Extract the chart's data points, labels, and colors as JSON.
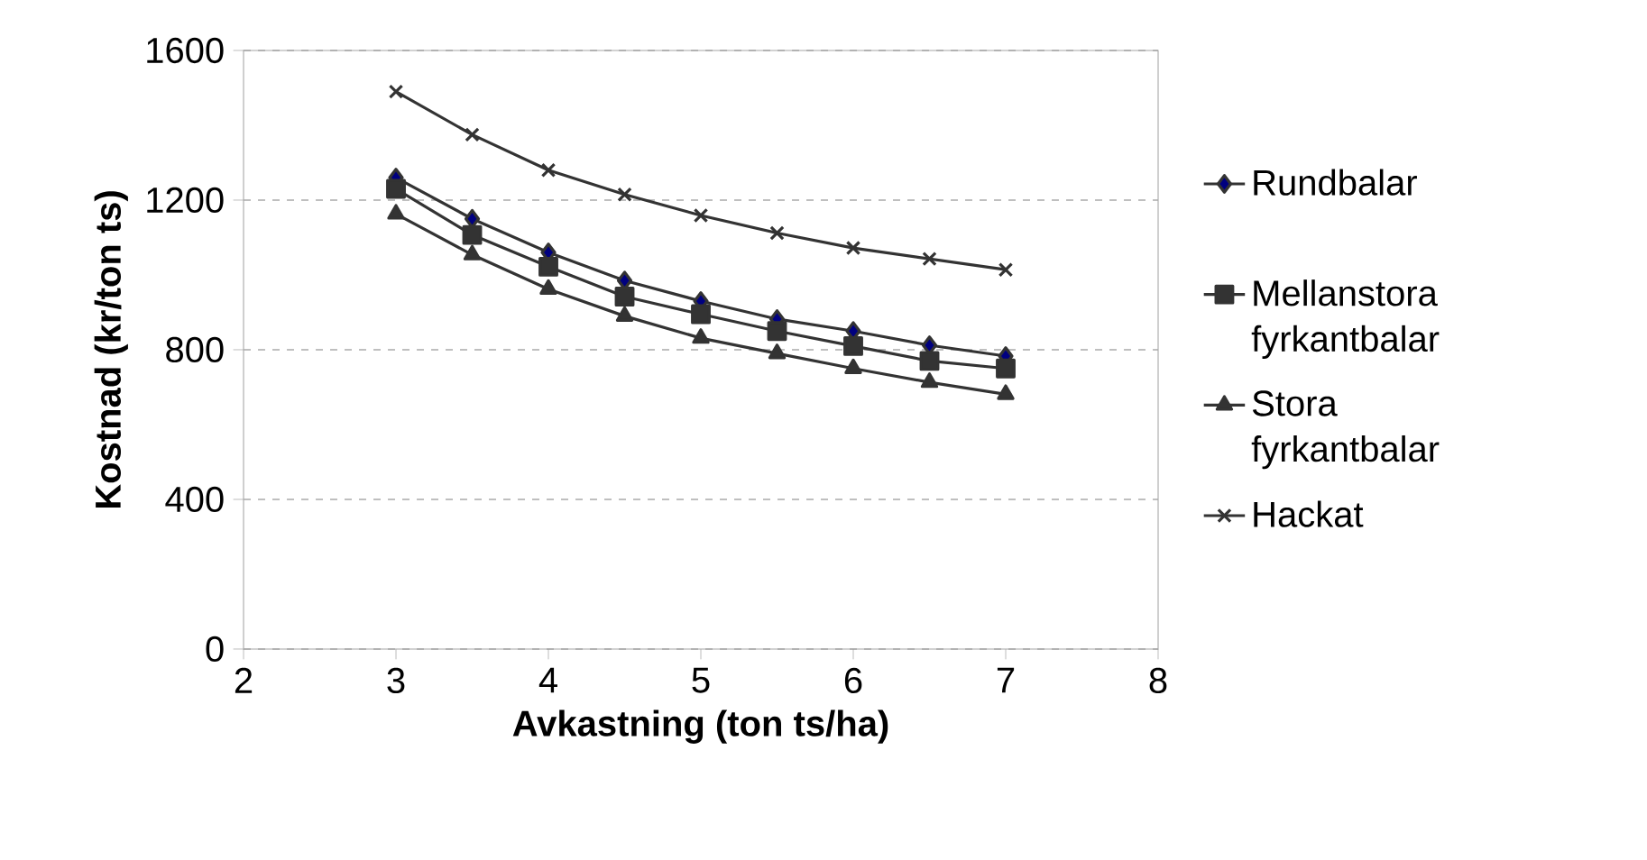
{
  "chart_data": {
    "type": "line",
    "xlabel": "Avkastning (ton ts/ha)",
    "ylabel": "Kostnad (kr/ton ts)",
    "x": [
      3,
      3.5,
      4,
      4.5,
      5,
      5.5,
      6,
      6.5,
      7
    ],
    "series": [
      {
        "name": "Rundbalar",
        "color": "#000080",
        "marker": "diamond",
        "values": [
          1260,
          1150,
          1060,
          985,
          930,
          882,
          850,
          812,
          783
        ]
      },
      {
        "name": "Mellanstora fyrkantbalar",
        "color": "#333333",
        "marker": "square",
        "values": [
          1230,
          1107,
          1022,
          942,
          895,
          850,
          810,
          770,
          750
        ]
      },
      {
        "name": "Stora fyrkantbalar",
        "color": "#333333",
        "marker": "triangle",
        "values": [
          1163,
          1054,
          962,
          890,
          831,
          790,
          750,
          713,
          681
        ]
      },
      {
        "name": "Hackat",
        "color": "#333333",
        "marker": "cross",
        "values": [
          1490,
          1375,
          1280,
          1215,
          1159,
          1112,
          1072,
          1043,
          1014
        ]
      }
    ],
    "xlim": [
      2,
      8
    ],
    "xticks": [
      2,
      3,
      4,
      5,
      6,
      7,
      8
    ],
    "ylim": [
      0,
      1600
    ],
    "yticks": [
      0,
      400,
      800,
      1200,
      1600
    ],
    "grid": "y",
    "legend": "right",
    "line_style": "solid"
  }
}
